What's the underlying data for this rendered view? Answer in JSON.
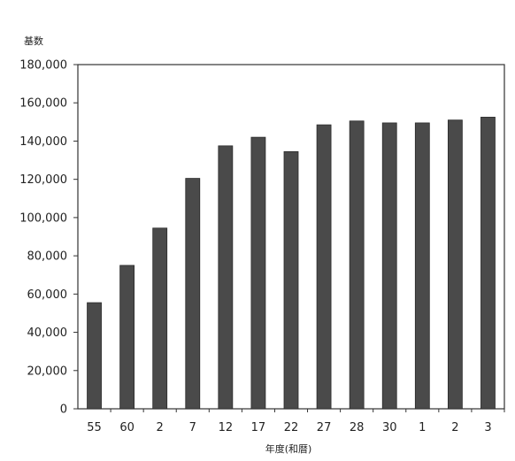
{
  "chart_data": {
    "type": "bar",
    "title": "",
    "ylabel": "基数",
    "xlabel": "年度(和暦)",
    "categories": [
      "55",
      "60",
      "2",
      "7",
      "12",
      "17",
      "22",
      "27",
      "28",
      "30",
      "1",
      "2",
      "3"
    ],
    "values": [
      55500,
      75000,
      94500,
      120500,
      137500,
      142000,
      134500,
      148500,
      150500,
      149500,
      149500,
      151000,
      152500
    ],
    "ylim": [
      0,
      180000
    ],
    "yticks": [
      0,
      20000,
      40000,
      60000,
      80000,
      100000,
      120000,
      140000,
      160000,
      180000
    ],
    "ytick_labels": [
      "0",
      "20,000",
      "40,000",
      "60,000",
      "80,000",
      "100,000",
      "120,000",
      "140,000",
      "160,000",
      "180,000"
    ],
    "grid": false,
    "legend": "none",
    "bar_color": "#4a4a4a",
    "bar_edge_color": "#2a2a2a",
    "axis_color": "#333333"
  }
}
